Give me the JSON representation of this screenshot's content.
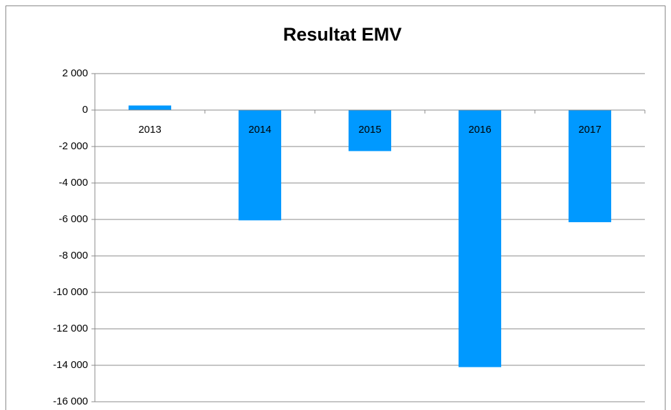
{
  "chart_data": {
    "type": "bar",
    "title": "Resultat EMV",
    "categories": [
      "2013",
      "2014",
      "2015",
      "2016",
      "2017"
    ],
    "values": [
      250,
      -6050,
      -2250,
      -14100,
      -6150
    ],
    "color": "#0099ff",
    "ylim": [
      -16000,
      2000
    ],
    "yticks": [
      {
        "value": -16000,
        "label": "-16 000"
      },
      {
        "value": -14000,
        "label": "-14 000"
      },
      {
        "value": -12000,
        "label": "-12 000"
      },
      {
        "value": -10000,
        "label": "-10 000"
      },
      {
        "value": -8000,
        "label": "-8 000"
      },
      {
        "value": -6000,
        "label": "-6 000"
      },
      {
        "value": -4000,
        "label": "-4 000"
      },
      {
        "value": -2000,
        "label": "-2 000"
      },
      0,
      {
        "value": 2000,
        "label": "2 000"
      }
    ],
    "grid": true
  }
}
